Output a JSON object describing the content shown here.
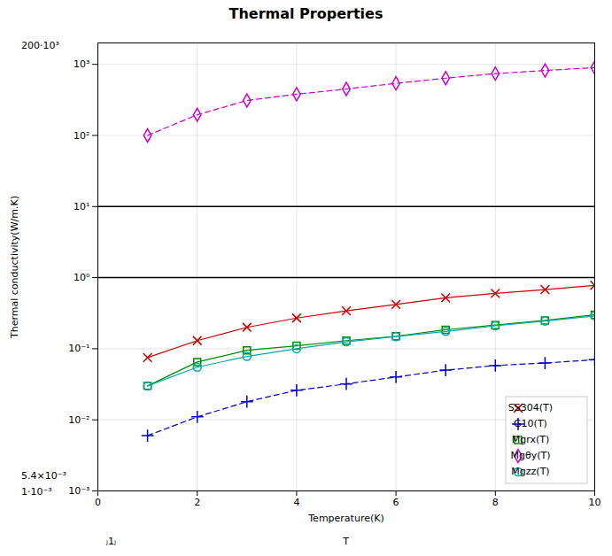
{
  "chart_data": {
    "type": "line",
    "title": "Thermal Properties",
    "x_label": "Temperature(K)",
    "y_label": "Thermal conductivity(W/m.K)",
    "x": [
      1,
      2,
      3,
      4,
      5,
      6,
      7,
      8,
      9,
      10
    ],
    "series": [
      {
        "name": "SS304(T)",
        "color": "#cc0000",
        "marker": "x",
        "line_style": "solid",
        "values": [
          0.075,
          0.13,
          0.2,
          0.27,
          0.34,
          0.42,
          0.52,
          0.6,
          0.68,
          0.78
        ]
      },
      {
        "name": "G10(T)",
        "color": "#0000cc",
        "marker": "plus",
        "line_style": "dashed",
        "values": [
          0.006,
          0.011,
          0.018,
          0.026,
          0.032,
          0.04,
          0.05,
          0.058,
          0.063,
          0.07
        ]
      },
      {
        "name": "Mgrx(T)",
        "color": "#008800",
        "marker": "square",
        "line_style": "solid",
        "values": [
          0.03,
          0.065,
          0.095,
          0.11,
          0.13,
          0.15,
          0.185,
          0.215,
          0.25,
          0.3
        ]
      },
      {
        "name": "Mgθy(T)",
        "color": "#cc00cc",
        "marker": "diamond",
        "line_style": "dashed",
        "values": [
          100,
          195,
          310,
          380,
          450,
          540,
          640,
          740,
          820,
          900
        ]
      },
      {
        "name": "Mgzz(T)",
        "color": "#00aaaa",
        "marker": "circle",
        "line_style": "solid",
        "values": [
          0.03,
          0.055,
          0.078,
          0.1,
          0.125,
          0.148,
          0.175,
          0.21,
          0.245,
          0.29
        ]
      }
    ],
    "xlim": [
      0,
      10
    ],
    "xticks": [
      0,
      2,
      4,
      6,
      8,
      10
    ],
    "ylim": [
      0.001,
      2000
    ],
    "yticks": [
      {
        "value": 0.001,
        "label": "10⁻³"
      },
      {
        "value": 0.01,
        "label": "10⁻²"
      },
      {
        "value": 0.1,
        "label": "10⁻¹"
      },
      {
        "value": 1,
        "label": "10⁰"
      },
      {
        "value": 10,
        "label": "10¹"
      },
      {
        "value": 100,
        "label": "10²"
      },
      {
        "value": 1000,
        "label": "10³"
      }
    ],
    "log": "y",
    "grid": true,
    "legend": "lower right",
    "hlines": [
      1.0,
      10.0
    ],
    "annotations": [
      "T",
      "ⱼ1ⱼ",
      "5.4×10⁻³",
      "1⋅10⁻³",
      "200⋅10³"
    ]
  }
}
